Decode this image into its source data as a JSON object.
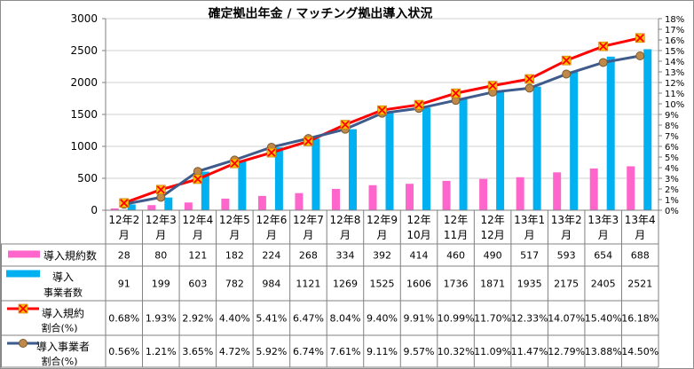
{
  "chart_data": {
    "type": "bar+line",
    "title": "確定拠出年金 / マッチング拠出導入状況",
    "categories": [
      [
        "12年2",
        "月"
      ],
      [
        "12年3",
        "月"
      ],
      [
        "12年4",
        "月"
      ],
      [
        "12年5",
        "月"
      ],
      [
        "12年6",
        "月"
      ],
      [
        "12年7",
        "月"
      ],
      [
        "12年8",
        "月"
      ],
      [
        "12年9",
        "月"
      ],
      [
        "12年",
        "10月"
      ],
      [
        "12年",
        "11月"
      ],
      [
        "12年",
        "12月"
      ],
      [
        "13年1",
        "月"
      ],
      [
        "13年2",
        "月"
      ],
      [
        "13年3",
        "月"
      ],
      [
        "13年4",
        "月"
      ]
    ],
    "y_left": {
      "min": 0,
      "max": 3000,
      "step": 500,
      "ticks": [
        "0",
        "500",
        "1000",
        "1500",
        "2000",
        "2500",
        "3000"
      ]
    },
    "y_right": {
      "min": 0,
      "max": 18,
      "step": 1,
      "ticks": [
        "0%",
        "1%",
        "2%",
        "3%",
        "4%",
        "5%",
        "6%",
        "7%",
        "8%",
        "9%",
        "10%",
        "11%",
        "12%",
        "13%",
        "14%",
        "15%",
        "16%",
        "17%",
        "18%"
      ]
    },
    "series": [
      {
        "name": "導入規約数",
        "type": "bar",
        "axis": "left",
        "color": "#ff66cc",
        "values": [
          28,
          80,
          121,
          182,
          224,
          268,
          334,
          392,
          414,
          460,
          490,
          517,
          593,
          654,
          688
        ],
        "labels": [
          "28",
          "80",
          "121",
          "182",
          "224",
          "268",
          "334",
          "392",
          "414",
          "460",
          "490",
          "517",
          "593",
          "654",
          "688"
        ]
      },
      {
        "name": "導入事業者数",
        "name_lines": [
          "導入",
          "事業者数"
        ],
        "type": "bar",
        "axis": "left",
        "color": "#00b0f0",
        "values": [
          91,
          199,
          603,
          782,
          984,
          1121,
          1269,
          1525,
          1606,
          1736,
          1871,
          1935,
          2175,
          2405,
          2521
        ],
        "labels": [
          "91",
          "199",
          "603",
          "782",
          "984",
          "1121",
          "1269",
          "1525",
          "1606",
          "1736",
          "1871",
          "1935",
          "2175",
          "2405",
          "2521"
        ]
      },
      {
        "name": "導入規約割合(%)",
        "name_lines": [
          "導入規約",
          "割合(%)"
        ],
        "type": "line",
        "axis": "right",
        "color": "#ff0000",
        "marker_color": "#ffc000",
        "marker": "x",
        "values": [
          0.68,
          1.93,
          2.92,
          4.4,
          5.41,
          6.47,
          8.04,
          9.4,
          9.91,
          10.99,
          11.7,
          12.33,
          14.07,
          15.4,
          16.18
        ],
        "labels": [
          "0.68%",
          "1.93%",
          "2.92%",
          "4.40%",
          "5.41%",
          "6.47%",
          "8.04%",
          "9.40%",
          "9.91%",
          "10.99%",
          "11.70%",
          "12.33%",
          "14.07%",
          "15.40%",
          "16.18%"
        ]
      },
      {
        "name": "導入事業者割合(%)",
        "name_lines": [
          "導入事業者",
          "割合(%)"
        ],
        "type": "line",
        "axis": "right",
        "color": "#3e5b8c",
        "marker_color": "#c0894a",
        "marker": "circle",
        "values": [
          0.56,
          1.21,
          3.65,
          4.72,
          5.92,
          6.74,
          7.61,
          9.11,
          9.57,
          10.32,
          11.09,
          11.47,
          12.79,
          13.88,
          14.5
        ],
        "labels": [
          "0.56%",
          "1.21%",
          "3.65%",
          "4.72%",
          "5.92%",
          "6.74%",
          "7.61%",
          "9.11%",
          "9.57%",
          "10.32%",
          "11.09%",
          "11.47%",
          "12.79%",
          "13.88%",
          "14.50%"
        ]
      }
    ]
  }
}
